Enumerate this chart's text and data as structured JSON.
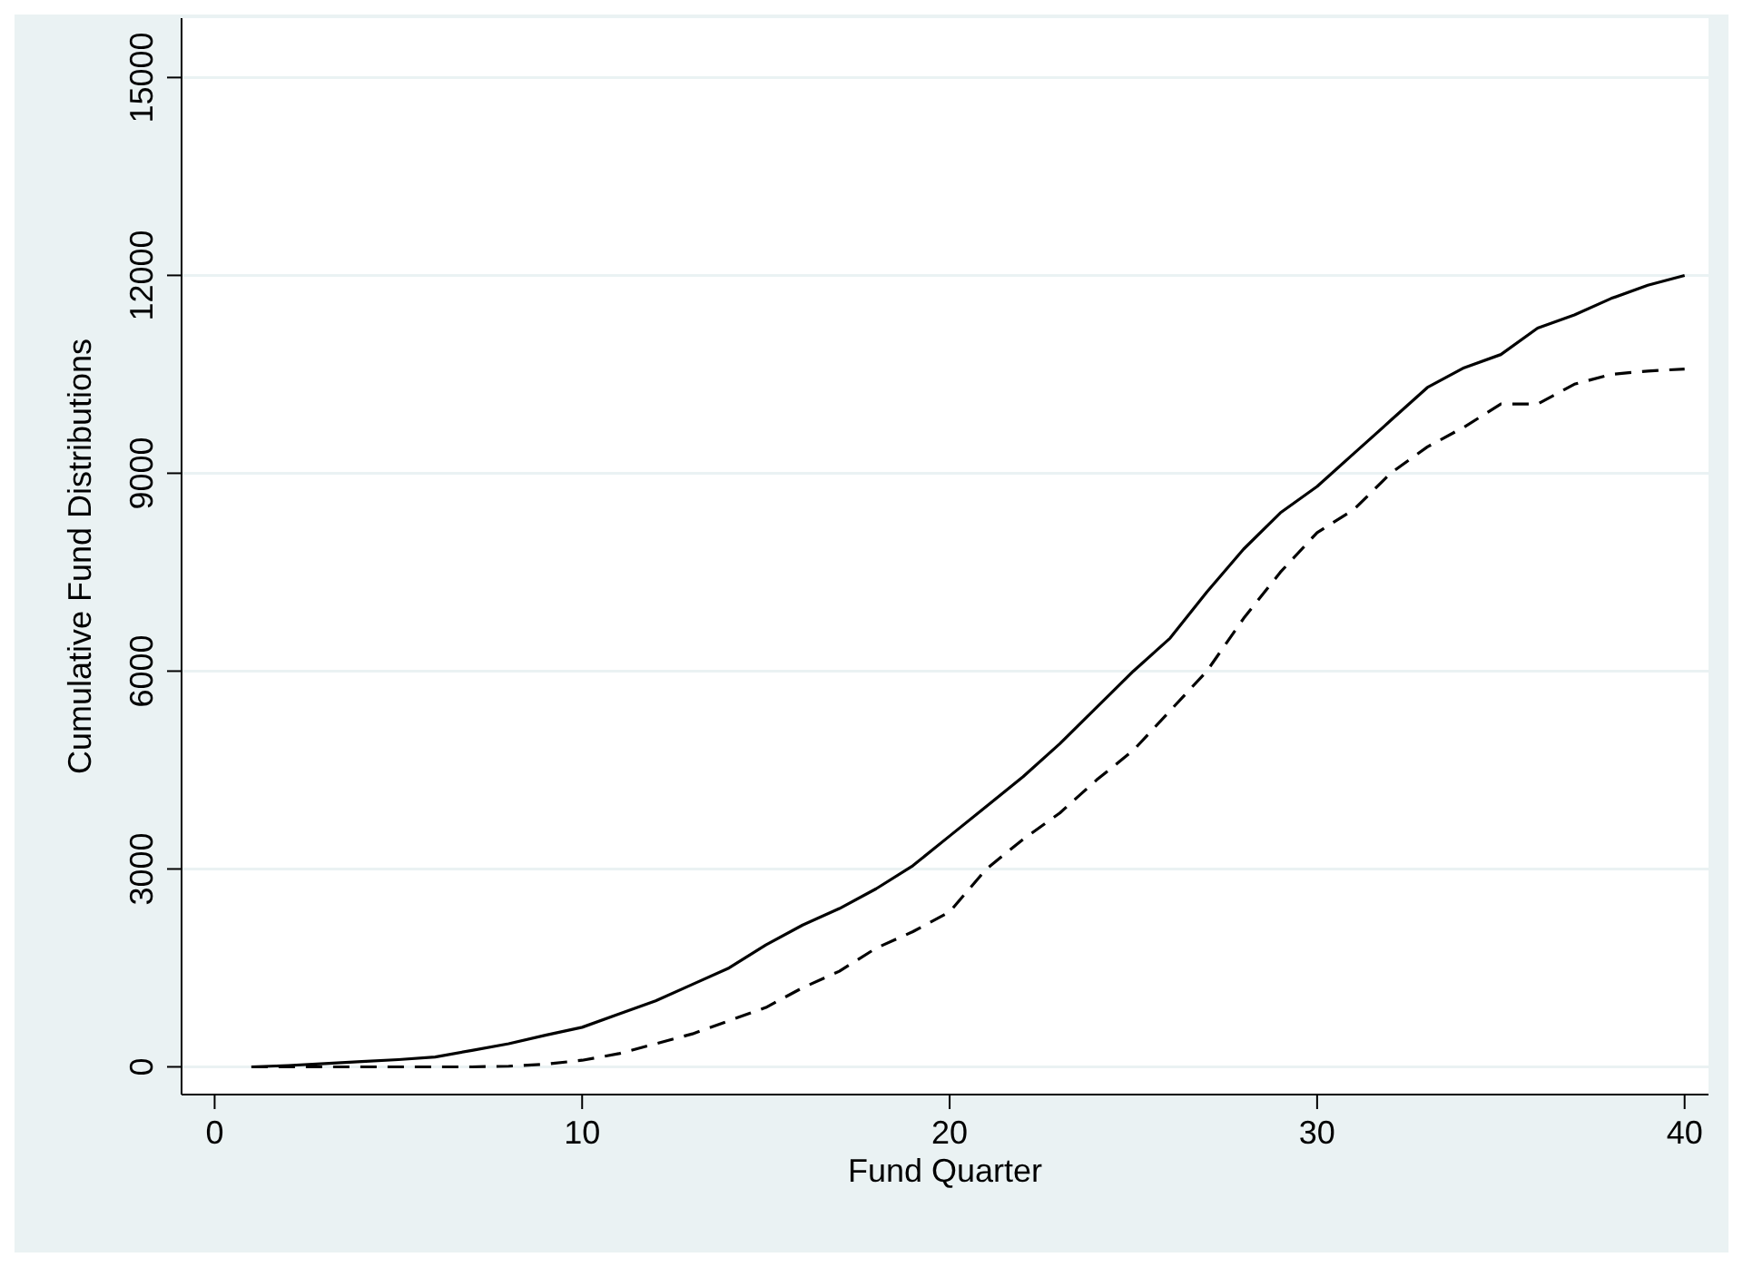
{
  "chart_data": {
    "type": "line",
    "xlabel": "Fund Quarter",
    "ylabel": "Cumulative Fund Distributions",
    "x": [
      1,
      2,
      3,
      4,
      5,
      6,
      7,
      8,
      9,
      10,
      11,
      12,
      13,
      14,
      15,
      16,
      17,
      18,
      19,
      20,
      21,
      22,
      23,
      24,
      25,
      26,
      27,
      28,
      29,
      30,
      31,
      32,
      33,
      34,
      35,
      36,
      37,
      38,
      39,
      40
    ],
    "series": [
      {
        "color": "#000000",
        "line_style": "solid",
        "values": [
          0,
          20,
          50,
          80,
          110,
          150,
          250,
          350,
          480,
          600,
          800,
          1000,
          1250,
          1500,
          1850,
          2150,
          2400,
          2700,
          3050,
          3500,
          3950,
          4400,
          4900,
          5450,
          6000,
          6500,
          7200,
          7850,
          8400,
          8800,
          9300,
          9800,
          10300,
          10600,
          10800,
          11200,
          11400,
          11650,
          11850,
          12000
        ]
      },
      {
        "color": "#000000",
        "line_style": "dashed",
        "values": [
          0,
          0,
          0,
          0,
          0,
          0,
          0,
          10,
          40,
          100,
          200,
          350,
          500,
          700,
          900,
          1200,
          1450,
          1800,
          2050,
          2350,
          3000,
          3450,
          3850,
          4350,
          4800,
          5400,
          6000,
          6800,
          7500,
          8100,
          8450,
          9000,
          9400,
          9700,
          10050,
          10050,
          10350,
          10500,
          10550,
          10580
        ]
      }
    ],
    "xlim": [
      -0.9,
      40.65
    ],
    "xticks": [
      0,
      10,
      20,
      30,
      40
    ],
    "ylim": [
      -420,
      15900
    ],
    "yticks": [
      0,
      3000,
      6000,
      9000,
      12000,
      15000
    ],
    "grid": "y",
    "marker": "none"
  }
}
